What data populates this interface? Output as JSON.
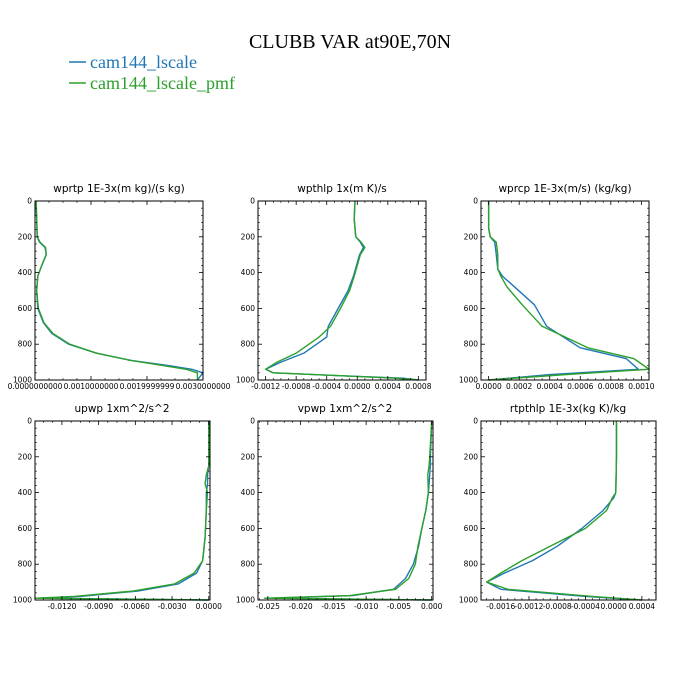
{
  "figure": {
    "title": "CLUBB VAR at90E,70N",
    "legend": [
      {
        "label": "cam144_lscale",
        "color": "#1f77b4"
      },
      {
        "label": "cam144_lscale_pmf",
        "color": "#2ca02c"
      }
    ]
  },
  "chart_data": [
    {
      "type": "line",
      "title": "wprtp  1E-3x(m kg)/(s kg)",
      "xlim": [
        0.0,
        0.003
      ],
      "ylim": [
        1000,
        0
      ],
      "xticks": [
        0.0,
        0.001,
        0.002,
        0.003
      ],
      "xtick_labels": [
        "0.0000000000",
        "0.0010000000",
        "0.0019999999",
        "0.0030000000"
      ],
      "yticks": [
        0,
        200,
        400,
        600,
        800,
        1000
      ],
      "ytick_labels": [
        "0",
        "200",
        "400",
        "600",
        "800",
        "1000"
      ],
      "series": [
        {
          "name": "cam144_lscale",
          "x": [
            2e-05,
            3e-05,
            4e-05,
            8e-05,
            0.00018,
            0.0002,
            0.00012,
            5e-05,
            3e-05,
            5e-05,
            0.00015,
            0.0003,
            0.0006,
            0.0011,
            0.0017,
            0.0024,
            0.0028,
            0.003,
            0.0029
          ],
          "y": [
            0,
            100,
            200,
            230,
            260,
            300,
            360,
            420,
            500,
            600,
            680,
            740,
            800,
            850,
            890,
            920,
            940,
            960,
            1000
          ]
        },
        {
          "name": "cam144_lscale_pmf",
          "x": [
            2e-05,
            3e-05,
            4e-05,
            9e-05,
            0.00019,
            0.0002,
            0.00012,
            5e-05,
            3e-05,
            6e-05,
            0.00016,
            0.00032,
            0.00062,
            0.0011,
            0.0017,
            0.0023,
            0.0027,
            0.0029,
            0.0029
          ],
          "y": [
            0,
            100,
            200,
            230,
            260,
            300,
            360,
            420,
            500,
            600,
            680,
            740,
            800,
            850,
            890,
            920,
            940,
            960,
            1000
          ]
        }
      ]
    },
    {
      "type": "line",
      "title": "wpthlp  1x(m K)/s",
      "xlim": [
        -0.0013,
        0.0009
      ],
      "ylim": [
        1000,
        0
      ],
      "xticks": [
        -0.0012,
        -0.0008,
        -0.0004,
        0.0,
        0.0004,
        0.0008
      ],
      "xtick_labels": [
        "-0.0012",
        "-0.0008",
        "-0.0004",
        "0.0000",
        "0.0004",
        "0.0008"
      ],
      "yticks": [
        0,
        200,
        400,
        600,
        800,
        1000
      ],
      "ytick_labels": [
        "0",
        "200",
        "400",
        "600",
        "800",
        "1000"
      ],
      "series": [
        {
          "name": "cam144_lscale",
          "x": [
            -3e-05,
            -4e-05,
            -2e-05,
            4e-05,
            8e-05,
            3e-05,
            -1e-05,
            -5e-05,
            -0.00012,
            -0.00025,
            -0.00038,
            -0.0004,
            -0.0007,
            -0.001,
            -0.0012,
            -0.0011,
            0.0,
            0.0006,
            0.0008
          ],
          "y": [
            0,
            100,
            200,
            230,
            260,
            300,
            360,
            420,
            500,
            600,
            700,
            760,
            850,
            900,
            940,
            960,
            980,
            990,
            1000
          ]
        },
        {
          "name": "cam144_lscale_pmf",
          "x": [
            -3e-05,
            -4e-05,
            -2e-05,
            5e-05,
            0.0001,
            4e-05,
            0.0,
            -4e-05,
            -0.0001,
            -0.00022,
            -0.00035,
            -0.0005,
            -0.0008,
            -0.00105,
            -0.0012,
            -0.0011,
            0.0,
            0.0005,
            0.0008
          ],
          "y": [
            0,
            100,
            200,
            230,
            260,
            300,
            360,
            420,
            500,
            600,
            700,
            760,
            850,
            900,
            940,
            960,
            980,
            990,
            1000
          ]
        }
      ]
    },
    {
      "type": "line",
      "title": "wprcp  1E-3x(m/s) (kg/kg)",
      "xlim": [
        -5e-05,
        0.00105
      ],
      "ylim": [
        1000,
        0
      ],
      "xticks": [
        0.0,
        0.0002,
        0.0004,
        0.0006,
        0.0008,
        0.001
      ],
      "xtick_labels": [
        "0.0000",
        "0.0002",
        "0.0004",
        "0.0006",
        "0.0008",
        "0.0010"
      ],
      "yticks": [
        0,
        200,
        400,
        600,
        800,
        1000
      ],
      "ytick_labels": [
        "0",
        "200",
        "400",
        "600",
        "800",
        "1000"
      ],
      "series": [
        {
          "name": "cam144_lscale",
          "x": [
            0.0,
            0.0,
            1e-05,
            4e-05,
            5e-05,
            6e-05,
            9e-05,
            0.00017,
            0.0003,
            0.00038,
            0.0006,
            0.0009,
            0.00098,
            0.0004,
            0.0
          ],
          "y": [
            0,
            150,
            200,
            230,
            300,
            380,
            420,
            480,
            580,
            700,
            820,
            880,
            940,
            970,
            1000
          ]
        },
        {
          "name": "cam144_lscale_pmf",
          "x": [
            0.0,
            0.0,
            1e-05,
            5e-05,
            6e-05,
            6e-05,
            8e-05,
            0.00012,
            0.00022,
            0.00035,
            0.00065,
            0.00095,
            0.00105,
            0.0005,
            0.0
          ],
          "y": [
            0,
            150,
            200,
            230,
            300,
            380,
            420,
            480,
            580,
            700,
            820,
            880,
            940,
            970,
            1000
          ]
        }
      ]
    },
    {
      "type": "line",
      "title": "upwp   1xm^2/s^2",
      "xlim": [
        -0.0142,
        0.0001
      ],
      "ylim": [
        1000,
        0
      ],
      "xticks": [
        -0.012,
        -0.009,
        -0.006,
        -0.003,
        0.0
      ],
      "xtick_labels": [
        "-0.0120",
        "-0.0090",
        "-0.0060",
        "-0.0030",
        "0.0000"
      ],
      "yticks": [
        0,
        200,
        400,
        600,
        800,
        1000
      ],
      "ytick_labels": [
        "0",
        "200",
        "400",
        "600",
        "800",
        "1000"
      ],
      "series": [
        {
          "name": "cam144_lscale",
          "x": [
            0.0,
            0.0,
            -0.0001,
            -0.0001,
            -0.0002,
            -0.0002,
            -0.0003,
            -0.0005,
            -0.001,
            -0.0025,
            -0.0058,
            -0.0105,
            -0.0135,
            0.0
          ],
          "y": [
            0,
            250,
            300,
            350,
            400,
            500,
            650,
            780,
            850,
            910,
            950,
            980,
            990,
            1000
          ]
        },
        {
          "name": "cam144_lscale_pmf",
          "x": [
            0.0,
            0.0,
            -0.0002,
            -0.0003,
            -0.0001,
            -0.0002,
            -0.0003,
            -0.0005,
            -0.0012,
            -0.0028,
            -0.0062,
            -0.011,
            -0.0142,
            0.0
          ],
          "y": [
            0,
            250,
            300,
            350,
            400,
            500,
            650,
            780,
            850,
            910,
            950,
            980,
            990,
            1000
          ]
        }
      ]
    },
    {
      "type": "line",
      "title": "vpwp   1xm^2/s^2",
      "xlim": [
        -0.0265,
        0.0002
      ],
      "ylim": [
        1000,
        0
      ],
      "xticks": [
        -0.025,
        -0.02,
        -0.015,
        -0.01,
        -0.005,
        0.0
      ],
      "xtick_labels": [
        "-0.025",
        "-0.020",
        "-0.015",
        "-0.010",
        "-0.005",
        "0.000"
      ],
      "yticks": [
        0,
        200,
        400,
        600,
        800,
        1000
      ],
      "ytick_labels": [
        "0",
        "200",
        "400",
        "600",
        "800",
        "1000"
      ],
      "series": [
        {
          "name": "cam144_lscale",
          "x": [
            0.0,
            -0.0002,
            -0.0002,
            -0.0003,
            -0.0005,
            -0.0009,
            -0.0015,
            -0.002,
            -0.0028,
            -0.004,
            -0.0058,
            -0.012,
            -0.024,
            0.0
          ],
          "y": [
            0,
            200,
            250,
            300,
            400,
            500,
            600,
            700,
            800,
            880,
            940,
            975,
            990,
            1000
          ]
        },
        {
          "name": "cam144_lscale_pmf",
          "x": [
            0.0,
            -0.0003,
            -0.0004,
            -0.0006,
            -0.0005,
            -0.0009,
            -0.0015,
            -0.0021,
            -0.0025,
            -0.0035,
            -0.0055,
            -0.0125,
            -0.0255,
            0.0
          ],
          "y": [
            0,
            200,
            250,
            300,
            400,
            500,
            600,
            700,
            800,
            880,
            940,
            975,
            990,
            1000
          ]
        }
      ]
    },
    {
      "type": "line",
      "title": "rtpthlp   1E-3x(kg K)/kg",
      "xlim": [
        -0.00188,
        0.0006
      ],
      "ylim": [
        1000,
        0
      ],
      "xticks": [
        -0.0016,
        -0.0012,
        -0.0008,
        -0.0004,
        0.0,
        0.0004
      ],
      "xtick_labels": [
        "-0.0016",
        "-0.0012",
        "-0.0008",
        "-0.0004",
        "0.0000",
        "0.0004"
      ],
      "yticks": [
        0,
        200,
        400,
        600,
        800,
        1000
      ],
      "ytick_labels": [
        "0",
        "200",
        "400",
        "600",
        "800",
        "1000"
      ],
      "series": [
        {
          "name": "cam144_lscale",
          "x": [
            4e-05,
            4e-05,
            3e-05,
            0.0,
            -0.00015,
            -0.00045,
            -0.0008,
            -0.00115,
            -0.00155,
            -0.0018,
            -0.0016,
            -0.0004,
            0.0004
          ],
          "y": [
            0,
            200,
            400,
            430,
            500,
            600,
            700,
            780,
            850,
            900,
            940,
            980,
            1000
          ]
        },
        {
          "name": "cam144_lscale_pmf",
          "x": [
            4e-05,
            4e-05,
            3e-05,
            -2e-05,
            -0.0001,
            -0.0004,
            -0.0009,
            -0.0013,
            -0.0016,
            -0.0018,
            -0.0015,
            -0.0003,
            0.0004
          ],
          "y": [
            0,
            200,
            400,
            430,
            500,
            600,
            700,
            780,
            850,
            900,
            940,
            980,
            1000
          ]
        }
      ]
    }
  ]
}
